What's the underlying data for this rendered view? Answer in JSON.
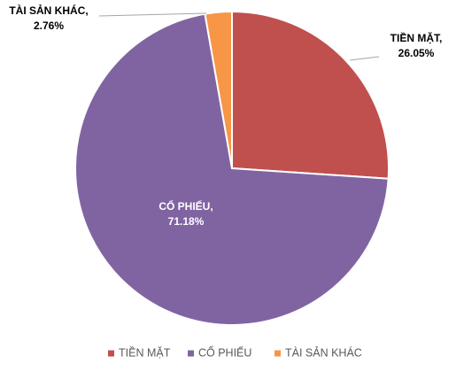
{
  "chart_data": {
    "type": "pie",
    "categories": [
      "TIỀN MẶT",
      "CỔ PHIẾU",
      "TÀI SẢN KHÁC"
    ],
    "values": [
      26.05,
      71.18,
      2.76
    ],
    "value_labels": [
      "26.05%",
      "71.18%",
      "2.76%"
    ],
    "label_separator": ",",
    "colors": [
      "#c0504d",
      "#8064a2",
      "#f79646"
    ],
    "legend": "bottom"
  }
}
